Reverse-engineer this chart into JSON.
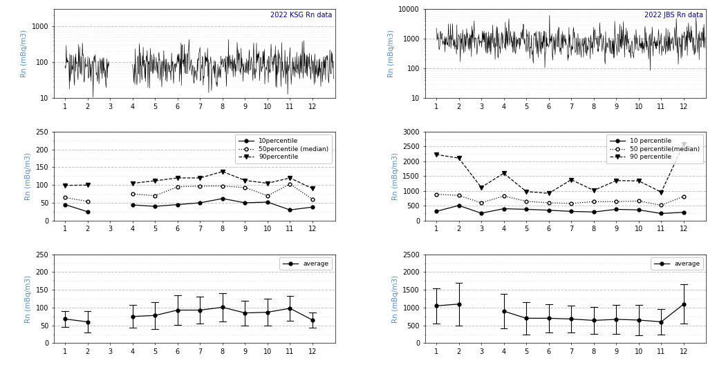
{
  "title_ksg": "2022 KSG Rn data",
  "title_jbs": "2022 JBS Rn data",
  "ylabel": "Rn (mBq/m3)",
  "xlabel_months": [
    1,
    2,
    3,
    4,
    5,
    6,
    7,
    8,
    9,
    10,
    11,
    12
  ],
  "ksg_percentile_10": [
    45,
    25,
    null,
    44,
    40,
    45,
    50,
    62,
    50,
    52,
    30,
    38
  ],
  "ksg_percentile_50": [
    65,
    54,
    null,
    75,
    70,
    95,
    97,
    97,
    93,
    70,
    103,
    60
  ],
  "ksg_percentile_90": [
    99,
    100,
    null,
    105,
    112,
    120,
    120,
    138,
    113,
    105,
    120,
    90
  ],
  "ksg_avg": [
    68,
    60,
    null,
    75,
    78,
    93,
    93,
    101,
    85,
    87,
    98,
    65
  ],
  "ksg_std": [
    22,
    30,
    null,
    32,
    38,
    42,
    38,
    40,
    35,
    38,
    35,
    22
  ],
  "jbs_percentile_10": [
    310,
    510,
    250,
    400,
    380,
    350,
    310,
    290,
    380,
    360,
    240,
    280
  ],
  "jbs_percentile_50": [
    890,
    850,
    600,
    830,
    650,
    600,
    580,
    640,
    640,
    660,
    520,
    820
  ],
  "jbs_percentile_90": [
    2230,
    2110,
    1120,
    1600,
    980,
    920,
    1380,
    1020,
    1350,
    1340,
    960,
    2590
  ],
  "jbs_avg": [
    1050,
    1100,
    null,
    900,
    700,
    700,
    680,
    640,
    670,
    650,
    600,
    1100
  ],
  "jbs_std": [
    500,
    600,
    null,
    480,
    450,
    400,
    380,
    380,
    400,
    420,
    350,
    550
  ],
  "ksg_log_ylim": [
    10,
    3000
  ],
  "jbs_log_ylim": [
    10,
    10000
  ],
  "ksg_pct_ylim": [
    0,
    250
  ],
  "ksg_avg_ylim": [
    0,
    250
  ],
  "jbs_pct_ylim": [
    0,
    3000
  ],
  "jbs_avg_ylim": [
    0,
    2500
  ],
  "color_ylabel": "#5B8EC5",
  "title_color": "navy",
  "background_color": "white",
  "grid_major_color": "#BBBBBB",
  "grid_minor_color": "#CCCCCC"
}
